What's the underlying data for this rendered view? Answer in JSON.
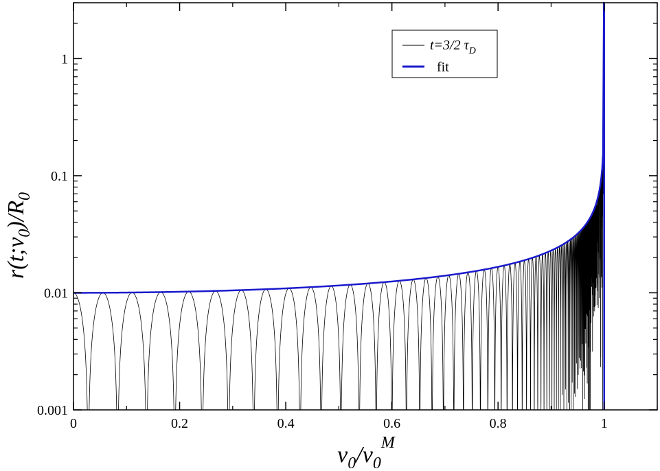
{
  "chart_data": {
    "type": "line",
    "xlabel": {
      "main": "v",
      "sub1": "0",
      "slash": "/v",
      "sub2": "0",
      "sup": "M"
    },
    "ylabel": {
      "text": "r(t;v",
      "sub1": "0",
      "mid": ")/R",
      "sub2": "0"
    },
    "xlim": [
      0,
      1.1
    ],
    "ylim": [
      0.001,
      3
    ],
    "yscale": "log",
    "x_ticks": [
      "0",
      "0.2",
      "0.4",
      "0.6",
      "0.8",
      "1"
    ],
    "x_tick_values": [
      0,
      0.2,
      0.4,
      0.6,
      0.8,
      1
    ],
    "y_ticks": [
      "0.001",
      "0.01",
      "0.1",
      "1"
    ],
    "y_tick_values": [
      0.001,
      0.01,
      0.1,
      1
    ],
    "grid": false,
    "legend_position": "top-right",
    "series": [
      {
        "name": "t=3/2 τD",
        "legend_label": {
          "main": "t=3/2 τ",
          "sub": "D"
        },
        "color": "#000000",
        "description_points": {
          "x": [
            0,
            0.05,
            0.1,
            0.2,
            0.3,
            0.4,
            0.5,
            0.6,
            0.7,
            0.8,
            0.9,
            0.95,
            0.98,
            1.0
          ],
          "y_upper": [
            0.01,
            0.01,
            0.0101,
            0.0102,
            0.0105,
            0.0109,
            0.0115,
            0.0125,
            0.0142,
            0.0167,
            0.0229,
            0.032,
            0.05,
            3
          ]
        }
      },
      {
        "name": "fit",
        "legend_label": {
          "main": "fit",
          "sub": ""
        },
        "color": "#1a1acd",
        "points": {
          "x": [
            0,
            0.05,
            0.1,
            0.2,
            0.3,
            0.4,
            0.5,
            0.6,
            0.7,
            0.8,
            0.9,
            0.95,
            0.98,
            1.0
          ],
          "y": [
            0.01,
            0.01,
            0.0101,
            0.0102,
            0.0105,
            0.0109,
            0.0115,
            0.0125,
            0.0142,
            0.0167,
            0.0229,
            0.032,
            0.05,
            3
          ]
        }
      }
    ]
  }
}
